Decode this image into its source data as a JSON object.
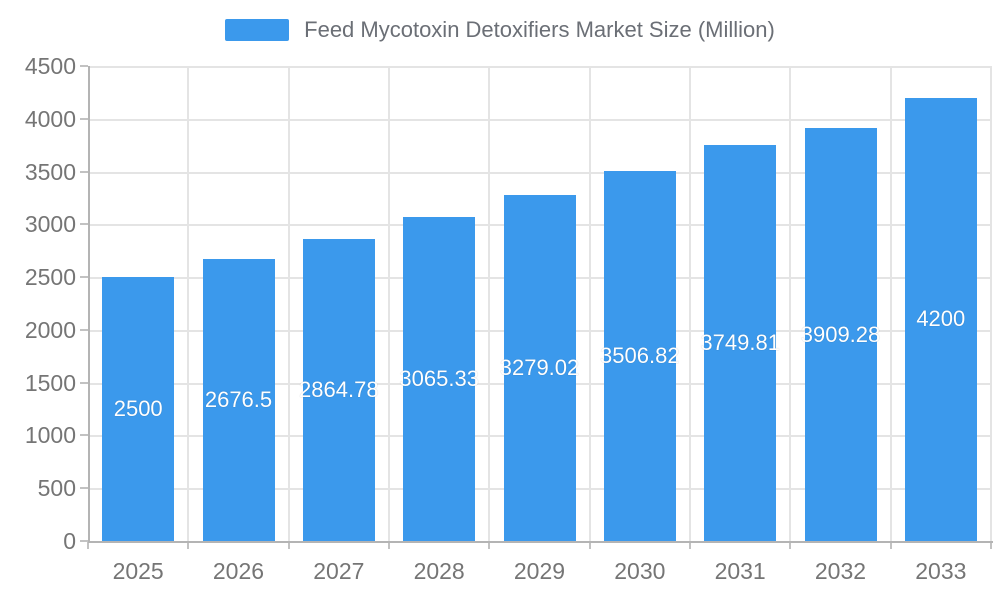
{
  "chart_data": {
    "type": "bar",
    "title": "Feed Mycotoxin Detoxifiers Market Size (Million)",
    "legend_entries": [
      "Feed Mycotoxin Detoxifiers Market Size (Million)"
    ],
    "legend_position": "top-center",
    "categories": [
      "2025",
      "2026",
      "2027",
      "2028",
      "2029",
      "2030",
      "2031",
      "2032",
      "2033"
    ],
    "values": [
      2500,
      2676.5,
      2864.78,
      3065.33,
      3279.02,
      3506.82,
      3749.81,
      3909.28,
      4200
    ],
    "data_labels": [
      "2500",
      "2676.5",
      "2864.78",
      "3065.33",
      "3279.02",
      "3506.82",
      "3749.81",
      "3909.28",
      "4200"
    ],
    "xlabel": "",
    "ylabel": "",
    "ylim": [
      0,
      4500
    ],
    "ytick_step": 500,
    "ytick_labels": [
      "0",
      "500",
      "1000",
      "1500",
      "2000",
      "2500",
      "3000",
      "3500",
      "4000",
      "4500"
    ],
    "grid": true,
    "colors": {
      "bar": "#3B99EC",
      "grid": "#E4E4E4",
      "axis_line": "#B4B4B4",
      "tick": "#C2C2C2",
      "axis_label": "#757575",
      "legend_text": "#6B6F76",
      "value_label": "#FFFFFF",
      "background": "#FFFFFF"
    }
  }
}
